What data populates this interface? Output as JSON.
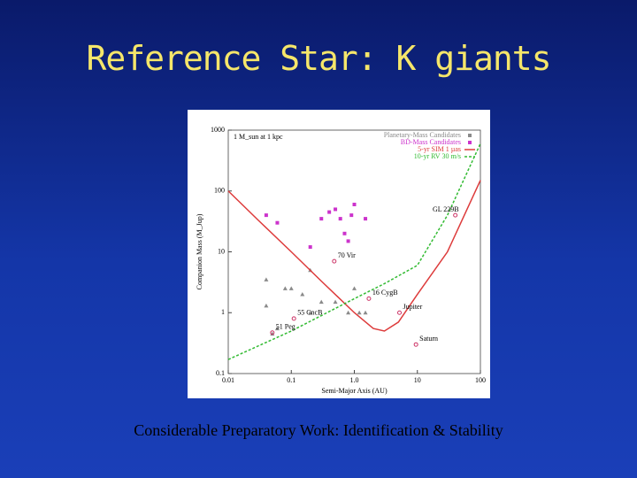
{
  "slide": {
    "title": "Reference Star: K giants",
    "caption": "Considerable Preparatory Work: Identification & Stability"
  },
  "chart_data": {
    "type": "scatter",
    "xlabel": "Semi-Major Axis (AU)",
    "ylabel": "Companion Mass (M_Jup)",
    "xscale": "log",
    "yscale": "log",
    "xlim": [
      0.01,
      100
    ],
    "ylim": [
      0.1,
      1000
    ],
    "xticks": [
      0.01,
      0.1,
      {
        "value": 1,
        "label": "1.0"
      },
      10,
      100
    ],
    "yticks": [
      0.1,
      1,
      10,
      100,
      1000
    ],
    "legend": "upper right",
    "note": "1 M_sun at 1 kpc",
    "series": [
      {
        "name": "Planetary-Mass Candidates",
        "color": "#8a8a8a",
        "style": "markers",
        "x": [
          0.04,
          0.04,
          0.05,
          0.06,
          0.08,
          0.1,
          0.15,
          0.2,
          0.2,
          0.3,
          0.5,
          0.8,
          1.0,
          1.2,
          1.5
        ],
        "values": [
          3.5,
          1.3,
          0.45,
          0.55,
          2.5,
          2.5,
          2,
          1.0,
          5,
          1.5,
          1.5,
          1.0,
          2.5,
          1.0,
          1.0
        ]
      },
      {
        "name": "BD-Mass Candidates",
        "color": "#cc33cc",
        "style": "markers",
        "x": [
          0.04,
          0.06,
          0.2,
          0.3,
          0.4,
          0.5,
          0.6,
          0.7,
          0.8,
          0.9,
          1.0,
          1.5
        ],
        "values": [
          40,
          30,
          12,
          35,
          45,
          50,
          35,
          20,
          15,
          40,
          60,
          35
        ]
      },
      {
        "name": "5-yr SIM 1 µas",
        "color": "#dd3b3b",
        "style": "line",
        "x": [
          0.01,
          0.03,
          0.1,
          0.3,
          1,
          2,
          3,
          5,
          10,
          30,
          100
        ],
        "values": [
          100,
          33,
          10,
          3.3,
          1.0,
          0.55,
          0.5,
          0.7,
          2,
          10,
          150
        ]
      },
      {
        "name": "10-yr RV 30 m/s",
        "color": "#33bb33",
        "style": "dashed",
        "x": [
          0.01,
          0.1,
          1,
          3,
          10,
          30,
          100
        ],
        "values": [
          0.17,
          0.5,
          1.7,
          3,
          6,
          40,
          600
        ]
      }
    ],
    "annotations": [
      {
        "text": "GL 229B",
        "x": 40,
        "y": 40
      },
      {
        "text": "70 Vir",
        "x": 0.48,
        "y": 7
      },
      {
        "text": "16 CygB",
        "x": 1.7,
        "y": 1.7
      },
      {
        "text": "55 CncB",
        "x": 0.11,
        "y": 0.8
      },
      {
        "text": "51 Peg",
        "x": 0.05,
        "y": 0.47
      },
      {
        "text": "Jupiter",
        "x": 5.2,
        "y": 1
      },
      {
        "text": "Saturn",
        "x": 9.5,
        "y": 0.3
      }
    ]
  }
}
